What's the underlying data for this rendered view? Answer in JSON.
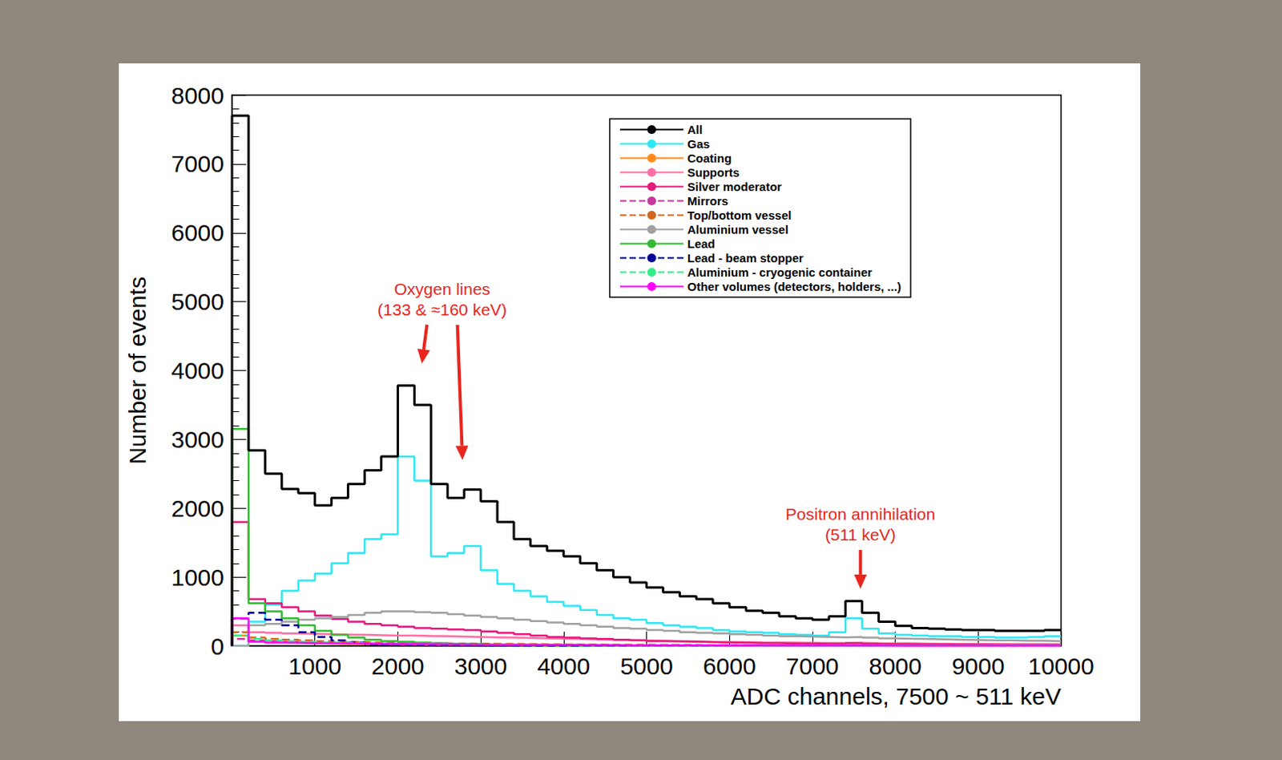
{
  "chart_data": {
    "type": "histogram",
    "x_label": "ADC channels, 7500 ~ 511 keV",
    "y_label": "Number of events",
    "xlim": [
      0,
      10000
    ],
    "xticks": [
      1000,
      2000,
      3000,
      4000,
      5000,
      6000,
      7000,
      8000,
      9000,
      10000
    ],
    "ylim": [
      0,
      8000
    ],
    "yticks": [
      0,
      1000,
      2000,
      3000,
      4000,
      5000,
      6000,
      7000,
      8000
    ],
    "grid": false,
    "legend": "upper right",
    "bins": [
      0,
      200,
      400,
      600,
      800,
      1000,
      1200,
      1400,
      1600,
      1800,
      2000,
      2200,
      2400,
      2600,
      2800,
      3000,
      3200,
      3400,
      3600,
      3800,
      4000,
      4200,
      4400,
      4600,
      4800,
      5000,
      5200,
      5400,
      5600,
      5800,
      6000,
      6200,
      6400,
      6600,
      6800,
      7000,
      7200,
      7400,
      7600,
      7800,
      8000,
      8200,
      8400,
      8600,
      8800,
      9000,
      9200,
      9400,
      9600,
      9800,
      10000
    ],
    "series": [
      {
        "name": "All",
        "color": "#000000",
        "line_style": "solid",
        "values": [
          7700,
          2840,
          2500,
          2280,
          2220,
          2040,
          2150,
          2350,
          2550,
          2750,
          3780,
          3500,
          2350,
          2150,
          2270,
          2100,
          1800,
          1550,
          1450,
          1380,
          1300,
          1200,
          1100,
          1000,
          920,
          850,
          780,
          720,
          680,
          620,
          560,
          510,
          480,
          430,
          400,
          380,
          430,
          650,
          480,
          350,
          290,
          260,
          250,
          240,
          230,
          230,
          220,
          220,
          220,
          230
        ]
      },
      {
        "name": "Gas",
        "color": "#2ee8f5",
        "line_style": "solid",
        "values": [
          0,
          350,
          600,
          800,
          950,
          1050,
          1200,
          1350,
          1550,
          1620,
          2750,
          2400,
          1300,
          1350,
          1450,
          1100,
          900,
          800,
          720,
          640,
          580,
          520,
          450,
          400,
          380,
          330,
          300,
          280,
          260,
          230,
          210,
          200,
          190,
          170,
          160,
          150,
          200,
          400,
          250,
          180,
          160,
          150,
          140,
          140,
          130,
          130,
          120,
          120,
          130,
          140
        ]
      },
      {
        "name": "Coating",
        "color": "#ff8c1a",
        "line_style": "solid",
        "values": [
          150,
          60,
          50,
          45,
          40,
          35,
          30,
          28,
          25,
          22,
          20,
          18,
          16,
          15,
          14,
          13,
          12,
          11,
          10,
          10,
          9,
          9,
          8,
          8,
          7,
          7,
          6,
          6,
          5,
          5,
          5,
          5,
          4,
          4,
          4,
          4,
          4,
          4,
          3,
          3,
          3,
          3,
          3,
          3,
          3,
          2,
          2,
          2,
          2,
          2
        ]
      },
      {
        "name": "Supports",
        "color": "#ff6fa5",
        "line_style": "solid",
        "values": [
          300,
          200,
          190,
          180,
          175,
          170,
          165,
          160,
          155,
          150,
          150,
          145,
          140,
          135,
          130,
          125,
          120,
          115,
          110,
          105,
          100,
          95,
          90,
          85,
          80,
          75,
          70,
          65,
          60,
          58,
          55,
          52,
          50,
          48,
          46,
          44,
          42,
          45,
          40,
          38,
          36,
          34,
          32,
          30,
          29,
          28,
          27,
          26,
          25,
          24
        ]
      },
      {
        "name": "Silver moderator",
        "color": "#e6197d",
        "line_style": "solid",
        "values": [
          1800,
          680,
          620,
          560,
          500,
          440,
          390,
          350,
          320,
          300,
          280,
          260,
          250,
          240,
          230,
          210,
          190,
          170,
          150,
          130,
          120,
          110,
          100,
          90,
          80,
          70,
          65,
          60,
          55,
          50,
          45,
          40,
          40,
          35,
          35,
          30,
          30,
          40,
          30,
          25,
          25,
          20,
          20,
          20,
          20,
          15,
          15,
          15,
          15,
          15
        ]
      },
      {
        "name": "Mirrors",
        "color": "#c43a9c",
        "line_style": "dashed",
        "values": [
          100,
          80,
          70,
          60,
          50,
          45,
          40,
          35,
          30,
          28,
          26,
          24,
          22,
          20,
          18,
          17,
          16,
          15,
          14,
          13,
          12,
          11,
          10,
          10,
          9,
          9,
          8,
          8,
          7,
          7,
          6,
          6,
          6,
          5,
          5,
          5,
          5,
          4,
          4,
          4,
          4,
          4,
          3,
          3,
          3,
          3,
          3,
          3,
          3,
          3
        ]
      },
      {
        "name": "Top/bottom vessel",
        "color": "#d2691e",
        "line_style": "dashed",
        "values": [
          200,
          120,
          100,
          90,
          80,
          70,
          60,
          55,
          50,
          45,
          40,
          38,
          36,
          34,
          32,
          30,
          28,
          26,
          24,
          22,
          20,
          19,
          18,
          17,
          16,
          15,
          14,
          13,
          12,
          11,
          10,
          10,
          9,
          9,
          8,
          8,
          8,
          7,
          7,
          7,
          6,
          6,
          6,
          5,
          5,
          5,
          5,
          5,
          4,
          4
        ]
      },
      {
        "name": "Aluminium vessel",
        "color": "#a0a0a0",
        "line_style": "solid",
        "values": [
          0,
          300,
          320,
          350,
          380,
          400,
          420,
          450,
          480,
          500,
          500,
          490,
          480,
          460,
          440,
          420,
          400,
          380,
          360,
          340,
          320,
          300,
          280,
          260,
          250,
          230,
          220,
          200,
          190,
          180,
          170,
          160,
          150,
          140,
          135,
          130,
          125,
          130,
          120,
          110,
          105,
          100,
          95,
          90,
          85,
          80,
          80,
          75,
          75,
          70
        ]
      },
      {
        "name": "Lead",
        "color": "#33bb33",
        "line_style": "solid",
        "values": [
          3150,
          620,
          500,
          400,
          300,
          220,
          160,
          120,
          90,
          70,
          60,
          50,
          40,
          30,
          25,
          20,
          15,
          10,
          10,
          8,
          7,
          6,
          5,
          5,
          4,
          4,
          3,
          3,
          3,
          3,
          2,
          2,
          2,
          2,
          2,
          2,
          2,
          2,
          2,
          2,
          1,
          1,
          1,
          1,
          1,
          1,
          1,
          1,
          1,
          1
        ]
      },
      {
        "name": "Lead - beam stopper",
        "color": "#000099",
        "line_style": "dashed",
        "values": [
          400,
          480,
          380,
          300,
          200,
          130,
          80,
          50,
          30,
          20,
          15,
          12,
          10,
          8,
          6,
          5,
          4,
          3,
          3,
          2,
          2,
          2,
          2,
          1,
          1,
          1,
          1,
          1,
          1,
          1,
          1,
          1,
          1,
          1,
          1,
          1,
          1,
          1,
          1,
          1,
          0,
          0,
          0,
          0,
          0,
          0,
          0,
          0,
          0,
          0
        ]
      },
      {
        "name": "Aluminium - cryogenic container",
        "color": "#33ee88",
        "line_style": "dashed",
        "values": [
          150,
          100,
          80,
          70,
          60,
          50,
          45,
          40,
          35,
          32,
          30,
          28,
          26,
          24,
          22,
          20,
          18,
          16,
          15,
          14,
          13,
          12,
          11,
          10,
          10,
          9,
          9,
          8,
          8,
          7,
          7,
          6,
          6,
          6,
          5,
          5,
          5,
          5,
          5,
          4,
          4,
          4,
          4,
          3,
          3,
          3,
          3,
          3,
          3,
          3
        ]
      },
      {
        "name": "Other volumes (detectors, holders, ...)",
        "color": "#ff00ff",
        "line_style": "solid",
        "values": [
          400,
          60,
          50,
          45,
          40,
          38,
          36,
          34,
          32,
          30,
          28,
          26,
          24,
          22,
          20,
          18,
          17,
          16,
          15,
          14,
          13,
          12,
          11,
          10,
          10,
          9,
          9,
          8,
          8,
          7,
          7,
          6,
          6,
          6,
          5,
          5,
          5,
          5,
          5,
          4,
          4,
          4,
          4,
          3,
          3,
          3,
          3,
          3,
          3,
          3
        ]
      }
    ],
    "annotations": [
      {
        "text": "Oxygen lines\n(133 & ≈160 keV)",
        "color": "#e8261e",
        "arrows": [
          [
            2290,
            4100
          ],
          [
            2780,
            2700
          ]
        ]
      },
      {
        "text": "Positron annihilation\n(511 keV)",
        "color": "#e8261e",
        "arrows": [
          [
            7580,
            830
          ]
        ]
      }
    ]
  }
}
